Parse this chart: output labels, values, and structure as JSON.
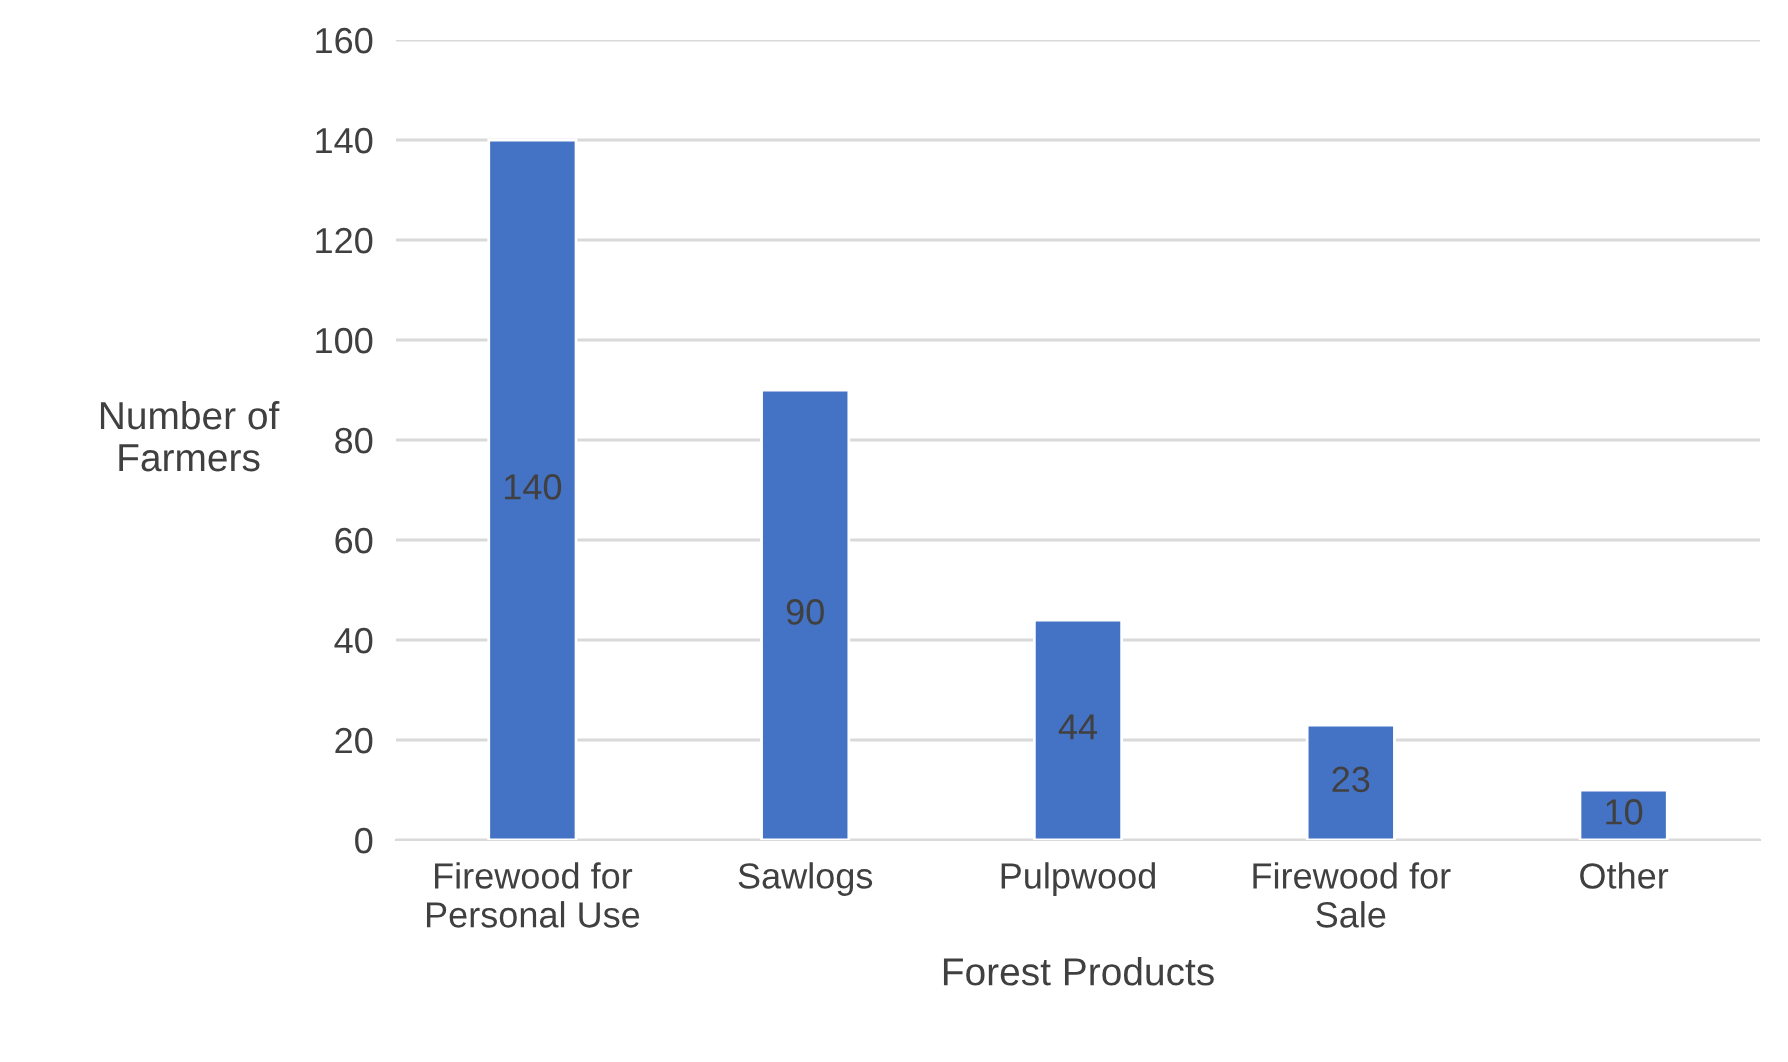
{
  "chart_data": {
    "type": "bar",
    "xlabel": "Forest Products",
    "ylabel": "Number of\nFarmers",
    "categories": [
      "Firewood for\nPersonal Use",
      "Sawlogs",
      "Pulpwood",
      "Firewood for\nSale",
      "Other"
    ],
    "values": [
      140,
      90,
      44,
      23,
      10
    ],
    "color": "#4472c4",
    "ylim": [
      0,
      160
    ],
    "yticks": [
      0,
      20,
      40,
      60,
      80,
      100,
      120,
      140,
      160
    ],
    "grid": "y",
    "data_labels": true
  }
}
